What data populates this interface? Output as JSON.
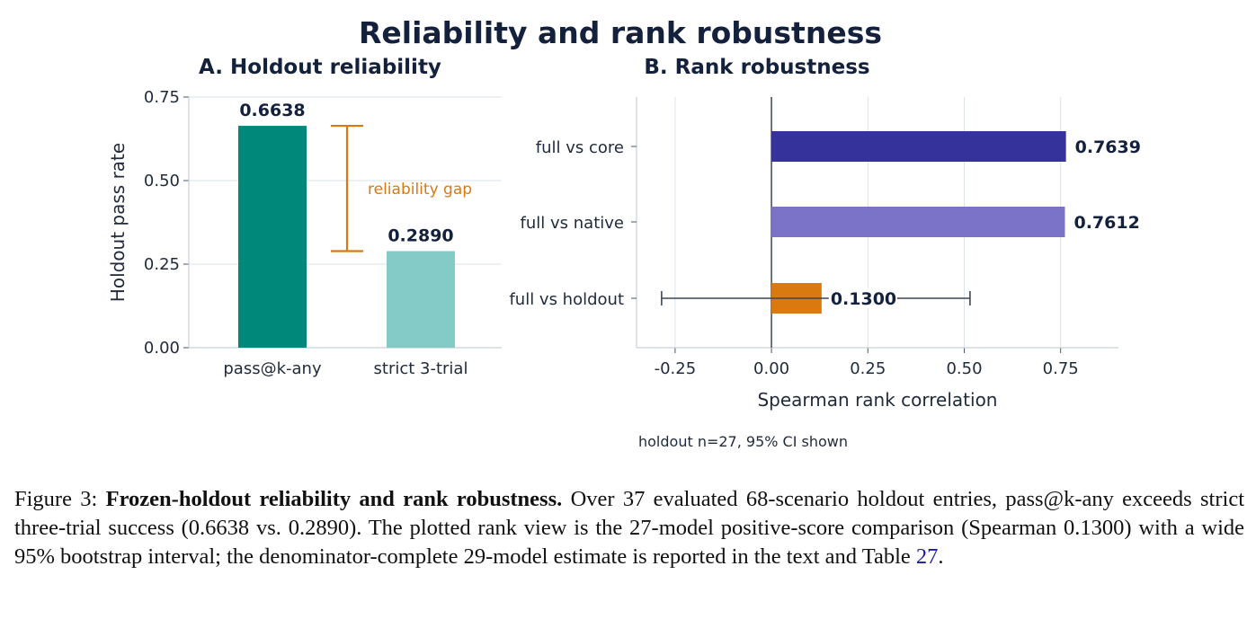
{
  "figure": {
    "suptitle": "Reliability and rank robustness",
    "note": "holdout n=27, 95% CI shown"
  },
  "chart_data": [
    {
      "type": "bar",
      "title": "A. Holdout reliability",
      "ylabel": "Holdout pass rate",
      "categories": [
        "pass@k-any",
        "strict 3-trial"
      ],
      "values": [
        0.6638,
        0.289
      ],
      "value_labels": [
        "0.6638",
        "0.2890"
      ],
      "colors": [
        "#00897b",
        "#84cbc8"
      ],
      "ylim": [
        0,
        0.75
      ],
      "yticks": [
        0,
        0.25,
        0.5,
        0.75
      ],
      "ytick_labels": [
        "0.00",
        "0.25",
        "0.50",
        "0.75"
      ],
      "annotation": {
        "text": "reliability gap",
        "from": 0.289,
        "to": 0.6638,
        "color": "#d9790f"
      },
      "grid": "horizontal"
    },
    {
      "type": "bar",
      "orientation": "horizontal",
      "title": "B. Rank robustness",
      "xlabel": "Spearman rank correlation",
      "categories": [
        "full vs core",
        "full vs native",
        "full vs holdout"
      ],
      "values": [
        0.7639,
        0.7612,
        0.13
      ],
      "value_labels": [
        "0.7639",
        "0.7612",
        "0.1300"
      ],
      "colors": [
        "#35339b",
        "#7b73c8",
        "#d9790f"
      ],
      "error_bars": [
        null,
        null,
        [
          -0.285,
          0.515
        ]
      ],
      "xlim": [
        -0.35,
        0.9
      ],
      "xticks": [
        -0.25,
        0,
        0.25,
        0.5,
        0.75
      ],
      "xtick_labels": [
        "-0.25",
        "0.00",
        "0.25",
        "0.50",
        "0.75"
      ],
      "grid": "vertical"
    }
  ],
  "caption": {
    "label": "Figure 3:",
    "bold": "Frozen-holdout reliability and rank robustness.",
    "text": "Over 37 evaluated 68-scenario holdout entries, pass@k-any exceeds strict three-trial success (0.6638 vs. 0.2890). The plotted rank view is the 27-model positive-score comparison (Spearman 0.1300) with a wide 95% bootstrap interval; the denominator-complete 29-model estimate is reported in the text and Table",
    "ref": "27",
    "end": "."
  }
}
